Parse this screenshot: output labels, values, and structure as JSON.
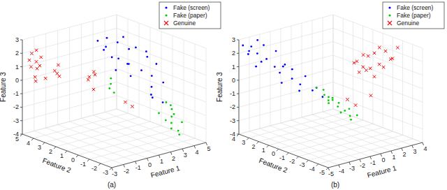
{
  "chart_data": [
    {
      "type": "scatter3d",
      "subtitle": "(a)",
      "x_label": "Feature 1",
      "y_label": "Feature 2",
      "z_label": "Feature 3",
      "xlim": [
        -3,
        5
      ],
      "ylim": [
        -3,
        5
      ],
      "zlim": [
        -4,
        3
      ],
      "xticks": [
        -3,
        -2,
        -1,
        0,
        1,
        2,
        3,
        4,
        5
      ],
      "yticks": [
        -3,
        -2,
        -1,
        0,
        1,
        2,
        3,
        4,
        5
      ],
      "zticks": [
        -4,
        -3,
        -2,
        -1,
        0,
        1,
        2,
        3
      ],
      "grid": true,
      "legend": "upper-right",
      "series": [
        {
          "name": "Fake (screen)",
          "color": "#0000ff",
          "marker": "dot",
          "x": [
            1.5,
            2.0,
            2.2,
            1.8,
            2.5,
            2.8,
            3.0,
            3.2,
            2.6,
            3.5,
            3.8,
            4.0,
            3.6,
            4.2,
            3.3,
            2.9,
            2.4,
            3.7,
            4.4,
            3.1,
            2.7,
            1.9,
            3.4,
            4.1
          ],
          "y": [
            3.0,
            2.8,
            3.2,
            2.5,
            2.2,
            2.6,
            1.8,
            2.0,
            1.5,
            1.2,
            1.0,
            0.8,
            0.4,
            0.6,
            0.0,
            -0.3,
            1.0,
            -0.5,
            0.2,
            2.4,
            3.0,
            1.8,
            1.6,
            1.4
          ],
          "z": [
            2.5,
            2.0,
            1.6,
            2.8,
            1.2,
            2.2,
            0.8,
            1.8,
            1.0,
            0.4,
            1.4,
            0.0,
            -0.6,
            0.9,
            -1.2,
            -0.8,
            0.3,
            -1.5,
            -0.4,
            2.6,
            1.0,
            0.6,
            2.0,
            1.6
          ]
        },
        {
          "name": "Fake (paper)",
          "color": "#00cc00",
          "marker": "dot",
          "x": [
            3.0,
            3.2,
            3.5,
            3.8,
            3.4,
            3.6,
            3.9,
            3.1,
            3.3,
            3.7,
            4.0,
            2.8,
            0.6,
            0.9,
            0.8,
            1.1
          ],
          "y": [
            -2.0,
            -1.8,
            -1.5,
            -1.2,
            -2.2,
            -1.6,
            -1.0,
            -1.4,
            -2.4,
            -0.8,
            -1.9,
            -1.1,
            1.0,
            1.2,
            0.8,
            1.4
          ],
          "z": [
            -2.8,
            -2.5,
            -2.2,
            -1.8,
            -3.0,
            -2.0,
            -1.6,
            -2.4,
            -3.2,
            -1.4,
            -2.6,
            -1.9,
            -0.2,
            0.0,
            -0.5,
            0.3
          ]
        },
        {
          "name": "Genuine",
          "color": "#ff0000",
          "marker": "x",
          "x": [
            -2.2,
            -2.0,
            -1.8,
            -2.3,
            -1.9,
            -2.1,
            -1.7,
            -2.4,
            -2.0,
            -1.6,
            -1.2,
            -1.0,
            -0.8,
            -1.1,
            0.4,
            0.6,
            0.5,
            0.8,
            1.0,
            1.3,
            0.2,
            -2.5
          ],
          "y": [
            5.0,
            4.8,
            4.95,
            4.6,
            4.9,
            4.75,
            4.7,
            4.85,
            4.5,
            4.4,
            4.0,
            3.8,
            4.1,
            3.9,
            2.6,
            2.4,
            2.8,
            2.5,
            0.0,
            -0.3,
            2.0,
            4.9
          ],
          "z": [
            1.8,
            1.2,
            0.6,
            0.2,
            2.0,
            -0.2,
            1.5,
            0.9,
            1.0,
            0.0,
            0.6,
            0.2,
            0.9,
            0.4,
            0.2,
            0.6,
            -0.1,
            0.3,
            -1.0,
            -1.3,
            -0.5,
            1.4
          ]
        }
      ]
    },
    {
      "type": "scatter3d",
      "subtitle": "(b)",
      "x_label": "Feature 1",
      "y_label": "Feature 2",
      "z_label": "Feature 3",
      "xlim": [
        -5,
        4
      ],
      "ylim": [
        -5,
        4
      ],
      "zlim": [
        -4,
        3
      ],
      "xticks": [
        -5,
        -4,
        -3,
        -2,
        -1,
        0,
        1,
        2,
        3,
        4
      ],
      "yticks": [
        -5,
        -4,
        -3,
        -2,
        -1,
        0,
        1,
        2,
        3,
        4
      ],
      "zticks": [
        -4,
        -3,
        -2,
        -1,
        0,
        1,
        2,
        3
      ],
      "grid": true,
      "legend": "upper-right",
      "series": [
        {
          "name": "Fake (screen)",
          "color": "#0000ff",
          "marker": "dot",
          "x": [
            -4.8,
            -4.5,
            -4.2,
            -4.0,
            -3.8,
            -3.5,
            -3.2,
            -3.0,
            -2.8,
            -2.5,
            -2.2,
            -2.0,
            -1.8,
            -1.5,
            -1.2,
            -1.0,
            -3.6,
            -4.4,
            -2.6,
            -1.6,
            -0.8,
            -3.0,
            -2.3,
            -4.1
          ],
          "y": [
            3.8,
            3.5,
            3.9,
            3.2,
            3.0,
            2.8,
            3.4,
            2.5,
            2.2,
            2.0,
            1.6,
            1.8,
            1.2,
            1.0,
            0.6,
            0.4,
            3.6,
            2.9,
            2.8,
            1.5,
            0.0,
            1.8,
            2.4,
            3.7
          ],
          "z": [
            2.6,
            2.2,
            1.8,
            2.0,
            1.4,
            1.6,
            2.4,
            1.0,
            0.6,
            1.2,
            0.2,
            0.8,
            -0.2,
            0.4,
            -0.6,
            -0.4,
            2.8,
            1.2,
            2.0,
            -0.8,
            -1.0,
            0.0,
            0.9,
            2.4
          ]
        },
        {
          "name": "Fake (paper)",
          "color": "#00cc00",
          "marker": "dot",
          "x": [
            -1.2,
            -1.0,
            -0.8,
            -0.6,
            -0.4,
            -0.2,
            0.0,
            -0.9,
            -0.5,
            -0.1,
            0.3,
            0.5,
            -1.4,
            -0.7,
            0.2,
            0.6
          ],
          "y": [
            -0.6,
            -0.8,
            -1.0,
            -0.4,
            -1.2,
            -0.9,
            -1.4,
            -0.2,
            -0.7,
            -1.1,
            -1.6,
            -1.3,
            0.0,
            -0.5,
            -1.8,
            -2.0
          ],
          "z": [
            -0.6,
            -1.0,
            -0.8,
            -1.4,
            -1.2,
            -1.6,
            -1.8,
            -0.4,
            -1.1,
            -2.0,
            -2.2,
            -1.8,
            -0.2,
            -0.9,
            -2.4,
            -2.1
          ]
        },
        {
          "name": "Genuine",
          "color": "#ff0000",
          "marker": "x",
          "x": [
            2.0,
            2.3,
            2.6,
            2.8,
            3.0,
            3.2,
            3.5,
            3.8,
            2.5,
            2.9,
            3.3,
            3.6,
            2.2,
            2.7,
            3.1,
            3.4,
            3.9,
            1.0,
            1.4,
            2.1
          ],
          "y": [
            -0.5,
            -0.8,
            -1.0,
            -0.6,
            -1.2,
            -1.5,
            -1.8,
            -2.0,
            -0.2,
            -0.9,
            -1.4,
            -2.4,
            0.0,
            -0.4,
            -1.1,
            -1.7,
            -2.6,
            -0.6,
            -1.0,
            -1.8
          ],
          "z": [
            1.2,
            0.8,
            1.6,
            0.4,
            1.8,
            1.0,
            2.0,
            1.4,
            0.2,
            0.6,
            2.2,
            1.6,
            0.9,
            1.5,
            0.0,
            0.8,
            2.4,
            -1.4,
            -1.8,
            -1.0
          ]
        }
      ]
    }
  ]
}
